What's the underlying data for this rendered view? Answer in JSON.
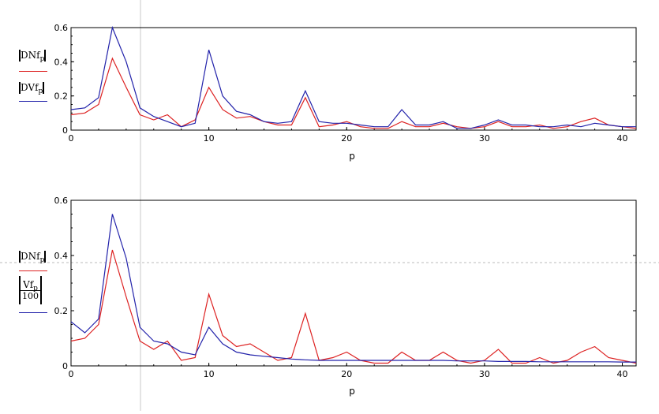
{
  "chart_data": [
    {
      "type": "line",
      "xlabel": "p",
      "xlim": [
        0,
        41
      ],
      "ylim": [
        0,
        0.6
      ],
      "x_ticks": [
        "0",
        "10",
        "20",
        "30",
        "40"
      ],
      "y_ticks": [
        "0",
        "0.2",
        "0.4",
        "0.6"
      ],
      "x": [
        0,
        1,
        2,
        3,
        4,
        5,
        6,
        7,
        8,
        9,
        10,
        11,
        12,
        13,
        14,
        15,
        16,
        17,
        18,
        19,
        20,
        21,
        22,
        23,
        24,
        25,
        26,
        27,
        28,
        29,
        30,
        31,
        32,
        33,
        34,
        35,
        36,
        37,
        38,
        39,
        40,
        41
      ],
      "series": [
        {
          "name": "|DNf_p|",
          "color": "#dd2222",
          "values": [
            0.09,
            0.1,
            0.15,
            0.42,
            0.25,
            0.09,
            0.06,
            0.09,
            0.02,
            0.06,
            0.25,
            0.12,
            0.07,
            0.08,
            0.05,
            0.03,
            0.03,
            0.19,
            0.02,
            0.03,
            0.05,
            0.02,
            0.01,
            0.01,
            0.05,
            0.02,
            0.02,
            0.04,
            0.02,
            0.01,
            0.02,
            0.05,
            0.02,
            0.02,
            0.03,
            0.01,
            0.02,
            0.05,
            0.07,
            0.03,
            0.02,
            0.01
          ]
        },
        {
          "name": "|DVf_p|",
          "color": "#2222aa",
          "values": [
            0.12,
            0.13,
            0.19,
            0.6,
            0.4,
            0.13,
            0.08,
            0.05,
            0.02,
            0.04,
            0.47,
            0.2,
            0.11,
            0.09,
            0.05,
            0.04,
            0.05,
            0.23,
            0.05,
            0.04,
            0.04,
            0.03,
            0.02,
            0.02,
            0.12,
            0.03,
            0.03,
            0.05,
            0.01,
            0.01,
            0.03,
            0.06,
            0.03,
            0.03,
            0.02,
            0.02,
            0.03,
            0.02,
            0.04,
            0.03,
            0.02,
            0.02
          ]
        }
      ],
      "legend": {
        "line1_main": "DNf",
        "line1_sub": "p",
        "line2_main": "DVf",
        "line2_sub": "p"
      }
    },
    {
      "type": "line",
      "xlabel": "p",
      "xlim": [
        0,
        41
      ],
      "ylim": [
        0,
        0.6
      ],
      "x_ticks": [
        "0",
        "10",
        "20",
        "30",
        "40"
      ],
      "y_ticks": [
        "0",
        "0.2",
        "0.4",
        "0.6"
      ],
      "x": [
        0,
        1,
        2,
        3,
        4,
        5,
        6,
        7,
        8,
        9,
        10,
        11,
        12,
        13,
        14,
        15,
        16,
        17,
        18,
        19,
        20,
        21,
        22,
        23,
        24,
        25,
        26,
        27,
        28,
        29,
        30,
        31,
        32,
        33,
        34,
        35,
        36,
        37,
        38,
        39,
        40,
        41
      ],
      "series": [
        {
          "name": "|DNf_p|",
          "color": "#dd2222",
          "values": [
            0.09,
            0.1,
            0.15,
            0.42,
            0.25,
            0.09,
            0.06,
            0.09,
            0.02,
            0.03,
            0.26,
            0.11,
            0.07,
            0.08,
            0.05,
            0.02,
            0.03,
            0.19,
            0.02,
            0.03,
            0.05,
            0.02,
            0.01,
            0.01,
            0.05,
            0.02,
            0.02,
            0.05,
            0.02,
            0.01,
            0.02,
            0.06,
            0.01,
            0.01,
            0.03,
            0.01,
            0.02,
            0.05,
            0.07,
            0.03,
            0.02,
            0.01
          ]
        },
        {
          "name": "|Vf_p / 100|",
          "color": "#2222aa",
          "values": [
            0.16,
            0.12,
            0.17,
            0.55,
            0.39,
            0.14,
            0.09,
            0.08,
            0.05,
            0.04,
            0.14,
            0.08,
            0.05,
            0.04,
            0.035,
            0.03,
            0.025,
            0.022,
            0.02,
            0.02,
            0.02,
            0.02,
            0.02,
            0.02,
            0.02,
            0.02,
            0.02,
            0.02,
            0.018,
            0.018,
            0.018,
            0.016,
            0.016,
            0.016,
            0.015,
            0.015,
            0.015,
            0.015,
            0.015,
            0.015,
            0.014,
            0.014
          ]
        }
      ],
      "legend": {
        "line1_main": "DNf",
        "line1_sub": "p",
        "line2_main": "Vf",
        "line2_sub": "p",
        "line2_den": "100"
      }
    }
  ]
}
